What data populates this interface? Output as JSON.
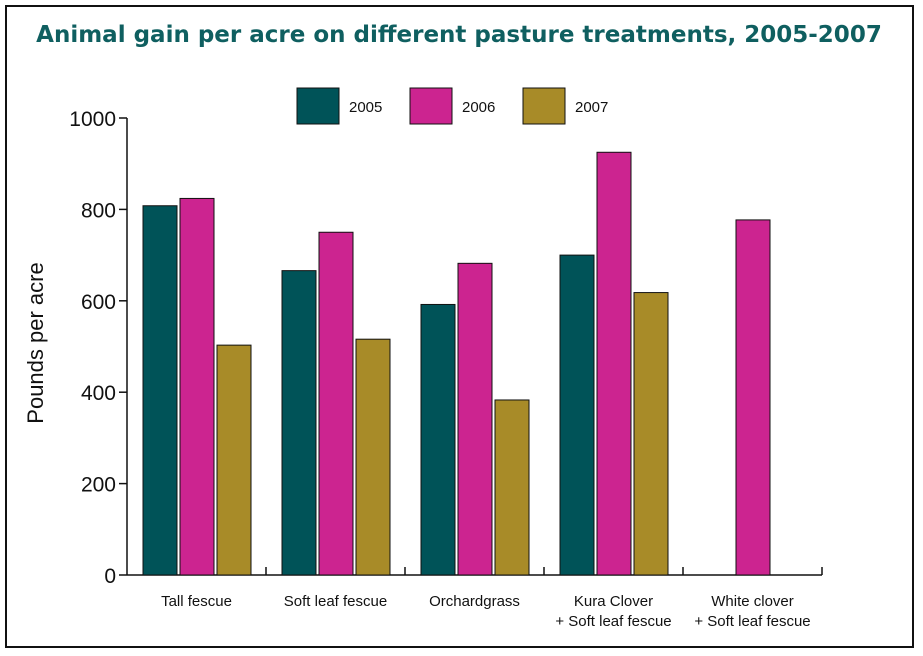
{
  "chart_data": {
    "type": "bar",
    "title": "Animal gain per acre on different pasture treatments, 2005-2007",
    "ylabel": "Pounds per acre",
    "xlabel": "",
    "ylim": [
      0,
      1000
    ],
    "yticks": [
      0,
      200,
      400,
      600,
      800,
      1000
    ],
    "categories": [
      [
        "Tall fescue"
      ],
      [
        "Soft leaf fescue"
      ],
      [
        "Orchardgrass"
      ],
      [
        "Kura Clover",
        "+ Soft leaf fescue"
      ],
      [
        "White clover",
        "+ Soft leaf fescue"
      ]
    ],
    "series": [
      {
        "name": "2005",
        "color": "#005358",
        "values": [
          808,
          666,
          592,
          700,
          null
        ]
      },
      {
        "name": "2006",
        "color": "#cc2490",
        "values": [
          824,
          750,
          682,
          925,
          777
        ]
      },
      {
        "name": "2007",
        "color": "#a88b28",
        "values": [
          503,
          516,
          383,
          618,
          null
        ]
      }
    ],
    "legend_position": "top-center",
    "grid": false,
    "title_color": "#0f5f60"
  }
}
